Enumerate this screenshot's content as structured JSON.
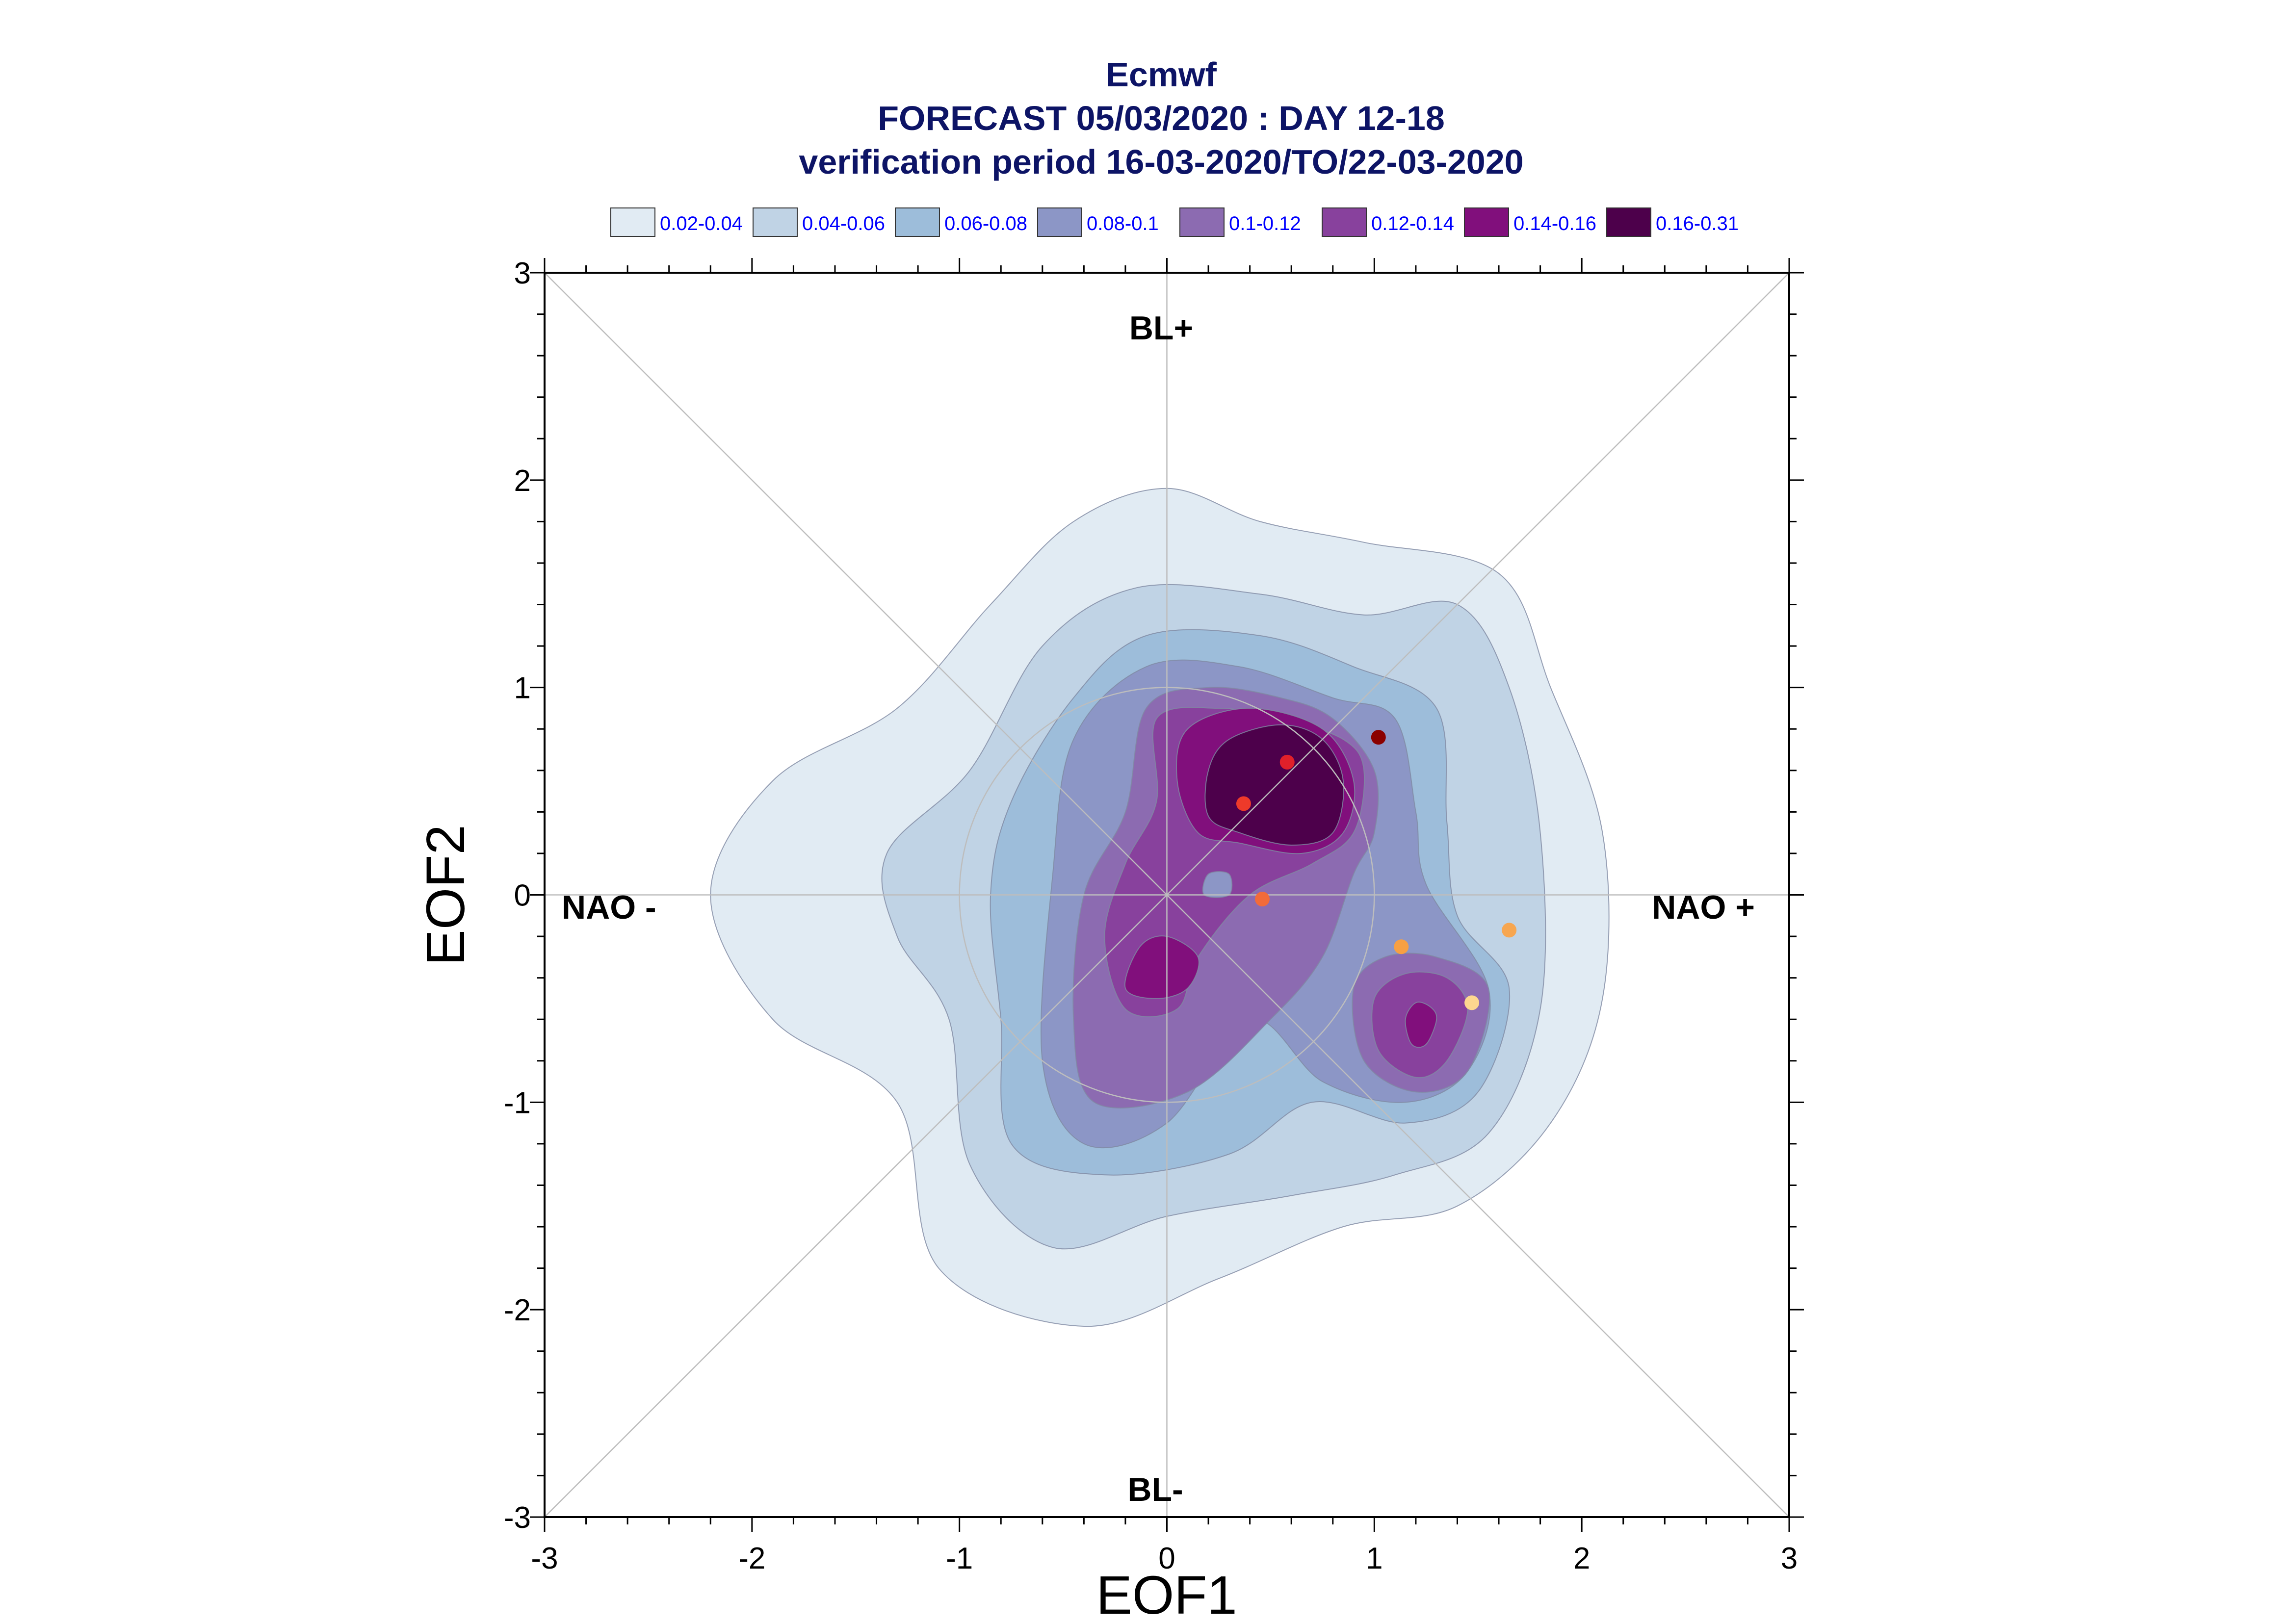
{
  "title": {
    "line1": "Ecmwf",
    "line2": "FORECAST 05/03/2020 : DAY 12-18",
    "line3": "verification period 16-03-2020/TO/22-03-2020"
  },
  "chart_data": {
    "type": "contour",
    "xlabel": "EOF1",
    "ylabel": "EOF2",
    "xlim": [
      -3,
      3
    ],
    "ylim": [
      -3,
      3
    ],
    "x_ticks": [
      "-3",
      "-2",
      "-1",
      "0",
      "1",
      "2",
      "3"
    ],
    "y_ticks": [
      "-3",
      "-2",
      "-1",
      "0",
      "1",
      "2",
      "3"
    ],
    "region_labels": {
      "top": "BL+",
      "bottom": "BL-",
      "left": "NAO -",
      "right": "NAO +"
    },
    "legend": [
      {
        "label": "0.02-0.04",
        "color": "#e1ebf3"
      },
      {
        "label": "0.04-0.06",
        "color": "#c0d3e5"
      },
      {
        "label": "0.06-0.08",
        "color": "#9dbdda"
      },
      {
        "label": "0.08-0.1",
        "color": "#8c96c6"
      },
      {
        "label": "0.1-0.12",
        "color": "#8c6bb1"
      },
      {
        "label": "0.12-0.14",
        "color": "#88419d"
      },
      {
        "label": "0.14-0.16",
        "color": "#810f7c"
      },
      {
        "label": "0.16-0.31",
        "color": "#4d004b"
      }
    ],
    "density_levels": [
      {
        "level": "0.02-0.04",
        "outline": [
          [
            1.85,
            1.0
          ],
          [
            2.1,
            0.3
          ],
          [
            2.1,
            -0.5
          ],
          [
            1.85,
            -1.1
          ],
          [
            1.4,
            -1.5
          ],
          [
            0.85,
            -1.6
          ],
          [
            0.25,
            -1.85
          ],
          [
            -0.4,
            -2.08
          ],
          [
            -1.1,
            -1.8
          ],
          [
            -1.3,
            -1.0
          ],
          [
            -1.9,
            -0.6
          ],
          [
            -2.2,
            0.0
          ],
          [
            -1.9,
            0.55
          ],
          [
            -1.3,
            0.9
          ],
          [
            -0.85,
            1.4
          ],
          [
            -0.45,
            1.8
          ],
          [
            0.0,
            1.96
          ],
          [
            0.45,
            1.8
          ],
          [
            0.95,
            1.7
          ],
          [
            1.6,
            1.55
          ]
        ]
      },
      {
        "level": "0.04-0.06",
        "outline": [
          [
            1.65,
            1.0
          ],
          [
            1.8,
            0.3
          ],
          [
            1.8,
            -0.55
          ],
          [
            1.55,
            -1.15
          ],
          [
            1.1,
            -1.35
          ],
          [
            0.6,
            -1.45
          ],
          [
            0.0,
            -1.55
          ],
          [
            -0.55,
            -1.7
          ],
          [
            -0.95,
            -1.3
          ],
          [
            -1.05,
            -0.6
          ],
          [
            -1.3,
            -0.2
          ],
          [
            -1.35,
            0.2
          ],
          [
            -0.95,
            0.6
          ],
          [
            -0.6,
            1.2
          ],
          [
            -0.15,
            1.48
          ],
          [
            0.45,
            1.45
          ],
          [
            0.95,
            1.35
          ],
          [
            1.4,
            1.4
          ]
        ]
      },
      {
        "level": "0.06-0.08",
        "outline": [
          [
            1.3,
            0.9
          ],
          [
            1.35,
            0.35
          ],
          [
            1.4,
            -0.1
          ],
          [
            1.65,
            -0.45
          ],
          [
            1.5,
            -0.95
          ],
          [
            1.15,
            -1.1
          ],
          [
            0.7,
            -1.0
          ],
          [
            0.3,
            -1.25
          ],
          [
            -0.3,
            -1.35
          ],
          [
            -0.75,
            -1.2
          ],
          [
            -0.8,
            -0.6
          ],
          [
            -0.85,
            0.0
          ],
          [
            -0.75,
            0.45
          ],
          [
            -0.45,
            0.95
          ],
          [
            -0.1,
            1.25
          ],
          [
            0.45,
            1.25
          ],
          [
            0.9,
            1.1
          ]
        ]
      },
      {
        "level": "0.08-0.1",
        "outline": [
          [
            1.1,
            0.85
          ],
          [
            1.2,
            0.4
          ],
          [
            1.25,
            0.05
          ],
          [
            1.55,
            -0.45
          ],
          [
            1.45,
            -0.85
          ],
          [
            1.15,
            -1.0
          ],
          [
            0.75,
            -0.9
          ],
          [
            0.4,
            -0.6
          ],
          [
            0.0,
            -1.1
          ],
          [
            -0.4,
            -1.2
          ],
          [
            -0.6,
            -0.8
          ],
          [
            -0.55,
            0.1
          ],
          [
            -0.45,
            0.75
          ],
          [
            -0.1,
            1.1
          ],
          [
            0.35,
            1.1
          ],
          [
            0.8,
            0.95
          ]
        ]
      },
      {
        "level": "0.1-0.12",
        "outline": [
          [
            1.0,
            0.6
          ],
          [
            1.0,
            0.3
          ],
          [
            0.9,
            0.1
          ],
          [
            0.75,
            -0.3
          ],
          [
            0.5,
            -0.6
          ],
          [
            0.1,
            -0.95
          ],
          [
            -0.35,
            -1.0
          ],
          [
            -0.45,
            -0.6
          ],
          [
            -0.4,
            0.0
          ],
          [
            -0.2,
            0.4
          ],
          [
            -0.1,
            0.9
          ],
          [
            0.2,
            1.0
          ],
          [
            0.55,
            0.95
          ],
          [
            0.8,
            0.85
          ]
        ]
      },
      {
        "level": "0.12-0.14",
        "outline": [
          [
            0.95,
            0.6
          ],
          [
            0.9,
            0.3
          ],
          [
            0.7,
            0.15
          ],
          [
            0.4,
            0.0
          ],
          [
            0.15,
            -0.3
          ],
          [
            0.05,
            -0.55
          ],
          [
            -0.2,
            -0.55
          ],
          [
            -0.3,
            -0.2
          ],
          [
            -0.2,
            0.15
          ],
          [
            -0.05,
            0.45
          ],
          [
            -0.05,
            0.85
          ],
          [
            0.25,
            0.9
          ],
          [
            0.55,
            0.85
          ],
          [
            0.85,
            0.75
          ]
        ]
      },
      {
        "level": "0.14-0.16",
        "outline": [
          [
            0.9,
            0.55
          ],
          [
            0.85,
            0.3
          ],
          [
            0.65,
            0.2
          ],
          [
            0.35,
            0.25
          ],
          [
            0.15,
            0.3
          ],
          [
            0.05,
            0.55
          ],
          [
            0.1,
            0.8
          ],
          [
            0.4,
            0.9
          ],
          [
            0.75,
            0.8
          ]
        ]
      },
      {
        "level": "0.16-0.31",
        "outline": [
          [
            0.85,
            0.55
          ],
          [
            0.8,
            0.3
          ],
          [
            0.6,
            0.24
          ],
          [
            0.35,
            0.3
          ],
          [
            0.2,
            0.38
          ],
          [
            0.2,
            0.6
          ],
          [
            0.3,
            0.75
          ],
          [
            0.55,
            0.82
          ],
          [
            0.75,
            0.75
          ]
        ]
      }
    ],
    "secondary_maxima": [
      {
        "level": "0.1-0.12",
        "outline": [
          [
            1.55,
            -0.45
          ],
          [
            1.45,
            -0.85
          ],
          [
            1.2,
            -0.95
          ],
          [
            0.95,
            -0.8
          ],
          [
            0.9,
            -0.45
          ],
          [
            1.05,
            -0.3
          ],
          [
            1.3,
            -0.3
          ]
        ]
      },
      {
        "level": "0.12-0.14",
        "outline": [
          [
            1.45,
            -0.55
          ],
          [
            1.35,
            -0.8
          ],
          [
            1.2,
            -0.88
          ],
          [
            1.02,
            -0.75
          ],
          [
            1.0,
            -0.5
          ],
          [
            1.15,
            -0.38
          ],
          [
            1.35,
            -0.4
          ]
        ]
      },
      {
        "level": "0.14-0.16",
        "outline": [
          [
            1.3,
            -0.6
          ],
          [
            1.25,
            -0.72
          ],
          [
            1.18,
            -0.72
          ],
          [
            1.15,
            -0.6
          ],
          [
            1.2,
            -0.52
          ],
          [
            1.27,
            -0.54
          ]
        ]
      },
      {
        "level": "0.14-0.16",
        "outline": [
          [
            0.15,
            -0.3
          ],
          [
            0.1,
            -0.45
          ],
          [
            -0.05,
            -0.5
          ],
          [
            -0.2,
            -0.45
          ],
          [
            -0.13,
            -0.25
          ],
          [
            0.0,
            -0.2
          ]
        ]
      },
      {
        "level": "0.08-0.1",
        "outline": [
          [
            0.3,
            0.1
          ],
          [
            0.3,
            0.0
          ],
          [
            0.18,
            0.0
          ],
          [
            0.2,
            0.1
          ]
        ]
      }
    ],
    "points": [
      {
        "x": 1.02,
        "y": 0.76,
        "color": "#8b0000"
      },
      {
        "x": 0.58,
        "y": 0.64,
        "color": "#e0202a"
      },
      {
        "x": 0.37,
        "y": 0.44,
        "color": "#ee3a2a"
      },
      {
        "x": 0.46,
        "y": -0.02,
        "color": "#f26b3a"
      },
      {
        "x": 1.13,
        "y": -0.25,
        "color": "#f7a043"
      },
      {
        "x": 1.65,
        "y": -0.17,
        "color": "#f7a650"
      },
      {
        "x": 1.47,
        "y": -0.52,
        "color": "#fdd78f"
      }
    ]
  }
}
